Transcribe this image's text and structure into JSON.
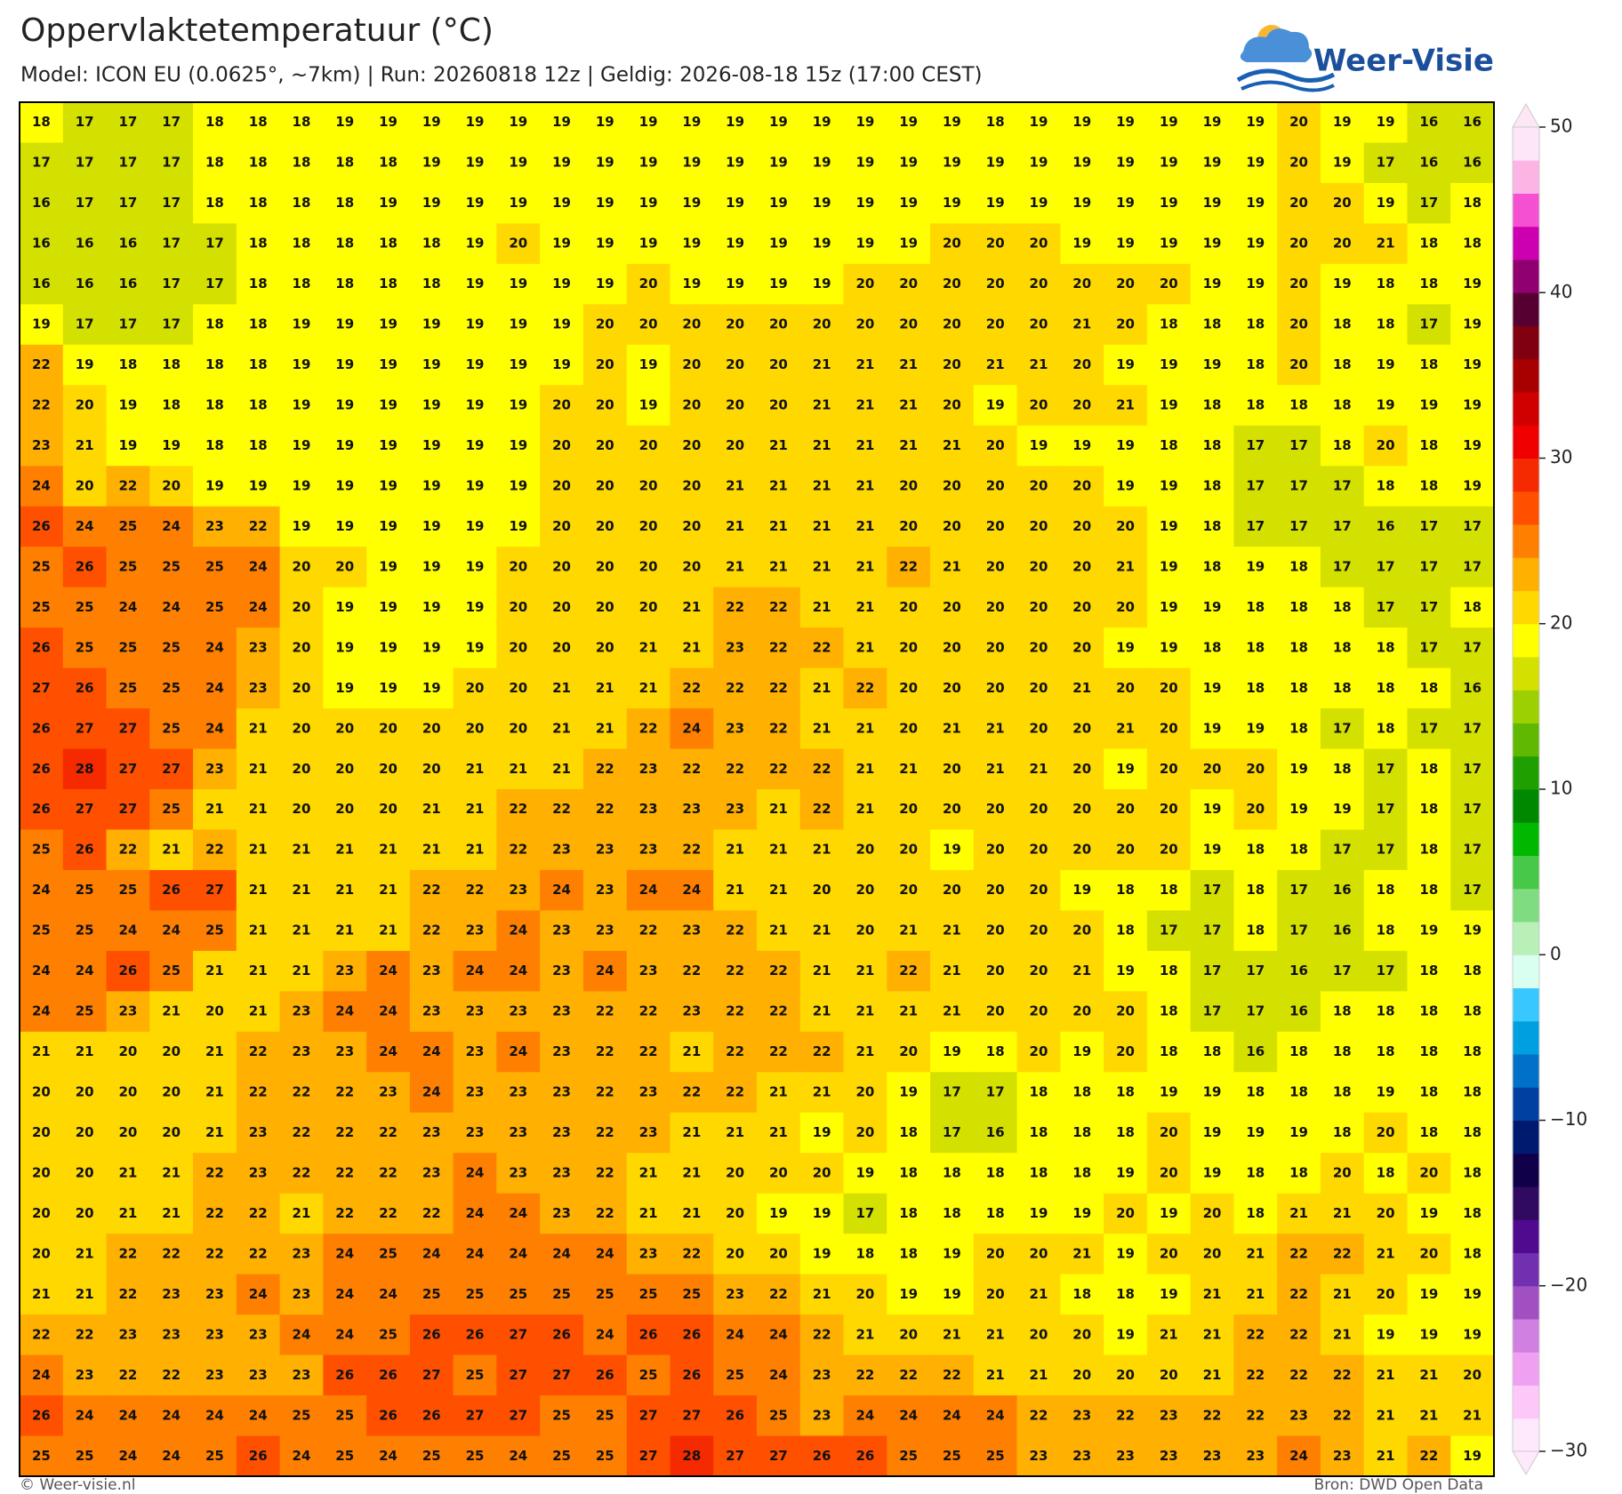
{
  "header": {
    "title": "Oppervlaktetemperatuur (°C)",
    "subtitle": "Model: ICON EU (0.0625°, ~7km)  |  Run: 20260818 12z  |  Geldig: 2026-08-18 15z (17:00 CEST)",
    "logo": "Weer-Visie"
  },
  "map": {
    "rows": [
      [
        18,
        17,
        17,
        17,
        18,
        18,
        18,
        19,
        19,
        19,
        19,
        19,
        19,
        19,
        19,
        19,
        19,
        19,
        19,
        19,
        19,
        19,
        18,
        19,
        19,
        19,
        19,
        19,
        19,
        20,
        19,
        19,
        16,
        16
      ],
      [
        17,
        17,
        17,
        17,
        18,
        18,
        18,
        18,
        18,
        19,
        19,
        19,
        19,
        19,
        19,
        19,
        19,
        19,
        19,
        19,
        19,
        19,
        19,
        19,
        19,
        19,
        19,
        19,
        19,
        20,
        19,
        17,
        16,
        16
      ],
      [
        16,
        17,
        17,
        17,
        18,
        18,
        18,
        18,
        19,
        19,
        19,
        19,
        19,
        19,
        19,
        19,
        19,
        19,
        19,
        19,
        19,
        19,
        19,
        19,
        19,
        19,
        19,
        19,
        19,
        20,
        20,
        19,
        17,
        18
      ],
      [
        16,
        16,
        16,
        17,
        17,
        18,
        18,
        18,
        18,
        18,
        19,
        20,
        19,
        19,
        19,
        19,
        19,
        19,
        19,
        19,
        19,
        20,
        20,
        20,
        19,
        19,
        19,
        19,
        19,
        20,
        20,
        21,
        18,
        18
      ],
      [
        16,
        16,
        16,
        17,
        17,
        18,
        18,
        18,
        18,
        18,
        19,
        19,
        19,
        19,
        20,
        19,
        19,
        19,
        19,
        20,
        20,
        20,
        20,
        20,
        20,
        20,
        20,
        19,
        19,
        20,
        19,
        18,
        18,
        19
      ],
      [
        19,
        17,
        17,
        17,
        18,
        18,
        19,
        19,
        19,
        19,
        19,
        19,
        19,
        20,
        20,
        20,
        20,
        20,
        20,
        20,
        20,
        20,
        20,
        20,
        21,
        20,
        18,
        18,
        18,
        20,
        18,
        18,
        17,
        19
      ],
      [
        22,
        19,
        18,
        18,
        18,
        18,
        19,
        19,
        19,
        19,
        19,
        19,
        19,
        20,
        19,
        20,
        20,
        20,
        21,
        21,
        21,
        20,
        21,
        21,
        20,
        19,
        19,
        19,
        18,
        20,
        18,
        19,
        18,
        19
      ],
      [
        22,
        20,
        19,
        18,
        18,
        18,
        19,
        19,
        19,
        19,
        19,
        19,
        20,
        20,
        19,
        20,
        20,
        20,
        21,
        21,
        21,
        20,
        19,
        20,
        20,
        21,
        19,
        18,
        18,
        18,
        18,
        19,
        19,
        19
      ],
      [
        23,
        21,
        19,
        19,
        18,
        18,
        19,
        19,
        19,
        19,
        19,
        19,
        20,
        20,
        20,
        20,
        20,
        21,
        21,
        21,
        21,
        21,
        20,
        19,
        19,
        19,
        18,
        18,
        17,
        17,
        18,
        20,
        18,
        19
      ],
      [
        24,
        20,
        22,
        20,
        19,
        19,
        19,
        19,
        19,
        19,
        19,
        19,
        20,
        20,
        20,
        20,
        21,
        21,
        21,
        21,
        20,
        20,
        20,
        20,
        20,
        19,
        19,
        18,
        17,
        17,
        17,
        18,
        18,
        19
      ],
      [
        26,
        24,
        25,
        24,
        23,
        22,
        19,
        19,
        19,
        19,
        19,
        19,
        20,
        20,
        20,
        20,
        21,
        21,
        21,
        21,
        20,
        20,
        20,
        20,
        20,
        20,
        19,
        18,
        17,
        17,
        17,
        16,
        17,
        17
      ],
      [
        25,
        26,
        25,
        25,
        25,
        24,
        20,
        20,
        19,
        19,
        19,
        20,
        20,
        20,
        20,
        20,
        21,
        21,
        21,
        21,
        22,
        21,
        20,
        20,
        20,
        21,
        19,
        18,
        19,
        18,
        17,
        17,
        17,
        17
      ],
      [
        25,
        25,
        24,
        24,
        25,
        24,
        20,
        19,
        19,
        19,
        19,
        20,
        20,
        20,
        20,
        21,
        22,
        22,
        21,
        21,
        20,
        20,
        20,
        20,
        20,
        20,
        19,
        19,
        18,
        18,
        18,
        17,
        17,
        18
      ],
      [
        26,
        25,
        25,
        25,
        24,
        23,
        20,
        19,
        19,
        19,
        19,
        20,
        20,
        20,
        21,
        21,
        23,
        22,
        22,
        21,
        20,
        20,
        20,
        20,
        20,
        19,
        19,
        18,
        18,
        18,
        18,
        18,
        17,
        17
      ],
      [
        27,
        26,
        25,
        25,
        24,
        23,
        20,
        19,
        19,
        19,
        20,
        20,
        21,
        21,
        21,
        22,
        22,
        22,
        21,
        22,
        20,
        20,
        20,
        20,
        21,
        20,
        20,
        19,
        18,
        18,
        18,
        18,
        18,
        16
      ],
      [
        26,
        27,
        27,
        25,
        24,
        21,
        20,
        20,
        20,
        20,
        20,
        20,
        21,
        21,
        22,
        24,
        23,
        22,
        21,
        21,
        20,
        21,
        21,
        20,
        20,
        21,
        20,
        19,
        19,
        18,
        17,
        18,
        17,
        17
      ],
      [
        26,
        28,
        27,
        27,
        23,
        21,
        20,
        20,
        20,
        20,
        21,
        21,
        21,
        22,
        23,
        22,
        22,
        22,
        22,
        21,
        21,
        20,
        21,
        21,
        20,
        19,
        20,
        20,
        20,
        19,
        18,
        17,
        18,
        17
      ],
      [
        26,
        27,
        27,
        25,
        21,
        21,
        20,
        20,
        20,
        21,
        21,
        22,
        22,
        22,
        23,
        23,
        23,
        21,
        22,
        21,
        20,
        20,
        20,
        20,
        20,
        20,
        20,
        19,
        20,
        19,
        19,
        17,
        18,
        17
      ],
      [
        25,
        26,
        22,
        21,
        22,
        21,
        21,
        21,
        21,
        21,
        21,
        22,
        23,
        23,
        23,
        22,
        21,
        21,
        21,
        20,
        20,
        19,
        20,
        20,
        20,
        20,
        20,
        19,
        18,
        18,
        17,
        17,
        18,
        17
      ],
      [
        24,
        25,
        25,
        26,
        27,
        21,
        21,
        21,
        21,
        22,
        22,
        23,
        24,
        23,
        24,
        24,
        21,
        21,
        20,
        20,
        20,
        20,
        20,
        20,
        19,
        18,
        18,
        17,
        18,
        17,
        16,
        18,
        18,
        17
      ],
      [
        25,
        25,
        24,
        24,
        25,
        21,
        21,
        21,
        21,
        22,
        23,
        24,
        23,
        23,
        22,
        23,
        22,
        21,
        21,
        20,
        21,
        21,
        20,
        20,
        20,
        18,
        17,
        17,
        18,
        17,
        16,
        18,
        19,
        19
      ],
      [
        24,
        24,
        26,
        25,
        21,
        21,
        21,
        23,
        24,
        23,
        24,
        24,
        23,
        24,
        23,
        22,
        22,
        22,
        21,
        21,
        22,
        21,
        20,
        20,
        21,
        19,
        18,
        17,
        17,
        16,
        17,
        17,
        18,
        18
      ],
      [
        24,
        25,
        23,
        21,
        20,
        21,
        23,
        24,
        24,
        23,
        23,
        23,
        23,
        22,
        22,
        23,
        22,
        22,
        21,
        21,
        21,
        21,
        20,
        20,
        20,
        20,
        18,
        17,
        17,
        16,
        18,
        18,
        18,
        18
      ],
      [
        21,
        21,
        20,
        20,
        21,
        22,
        23,
        23,
        24,
        24,
        23,
        24,
        23,
        22,
        22,
        21,
        22,
        22,
        22,
        21,
        20,
        19,
        18,
        20,
        19,
        20,
        18,
        18,
        16,
        18,
        18,
        18,
        18,
        18
      ],
      [
        20,
        20,
        20,
        20,
        21,
        22,
        22,
        22,
        23,
        24,
        23,
        23,
        23,
        22,
        23,
        22,
        22,
        21,
        21,
        20,
        19,
        17,
        17,
        18,
        18,
        18,
        19,
        19,
        18,
        18,
        18,
        19,
        18,
        18
      ],
      [
        20,
        20,
        20,
        20,
        21,
        23,
        22,
        22,
        22,
        23,
        23,
        23,
        23,
        22,
        23,
        21,
        21,
        21,
        19,
        20,
        18,
        17,
        16,
        18,
        18,
        18,
        20,
        19,
        19,
        19,
        18,
        20,
        18,
        18
      ],
      [
        20,
        20,
        21,
        21,
        22,
        23,
        22,
        22,
        22,
        23,
        24,
        23,
        23,
        22,
        21,
        21,
        20,
        20,
        20,
        19,
        18,
        18,
        18,
        18,
        18,
        19,
        20,
        19,
        18,
        18,
        20,
        18,
        20,
        18
      ],
      [
        20,
        20,
        21,
        21,
        22,
        22,
        21,
        22,
        22,
        22,
        24,
        24,
        23,
        22,
        21,
        21,
        20,
        19,
        19,
        17,
        18,
        18,
        18,
        19,
        19,
        20,
        19,
        20,
        18,
        21,
        21,
        20,
        19,
        18
      ],
      [
        20,
        21,
        22,
        22,
        22,
        22,
        23,
        24,
        25,
        24,
        24,
        24,
        24,
        24,
        23,
        22,
        20,
        20,
        19,
        18,
        18,
        19,
        20,
        20,
        21,
        19,
        20,
        20,
        21,
        22,
        22,
        21,
        20,
        18
      ],
      [
        21,
        21,
        22,
        23,
        23,
        24,
        23,
        24,
        24,
        25,
        25,
        25,
        25,
        25,
        25,
        25,
        23,
        22,
        21,
        20,
        19,
        19,
        20,
        21,
        18,
        18,
        19,
        21,
        21,
        22,
        21,
        20,
        19,
        19
      ],
      [
        22,
        22,
        23,
        23,
        23,
        23,
        24,
        24,
        25,
        26,
        26,
        27,
        26,
        24,
        26,
        26,
        24,
        24,
        22,
        21,
        20,
        21,
        21,
        20,
        20,
        19,
        21,
        21,
        22,
        22,
        21,
        19,
        19,
        19
      ],
      [
        24,
        23,
        22,
        22,
        23,
        23,
        23,
        26,
        26,
        27,
        25,
        27,
        27,
        26,
        25,
        26,
        25,
        24,
        23,
        22,
        22,
        22,
        21,
        21,
        20,
        20,
        20,
        21,
        22,
        22,
        22,
        21,
        21,
        20
      ],
      [
        26,
        24,
        24,
        24,
        24,
        24,
        25,
        25,
        26,
        26,
        27,
        27,
        25,
        25,
        27,
        27,
        26,
        25,
        23,
        24,
        24,
        24,
        24,
        22,
        23,
        22,
        23,
        22,
        22,
        23,
        22,
        21,
        21,
        21
      ],
      [
        25,
        25,
        24,
        24,
        25,
        26,
        24,
        25,
        24,
        25,
        25,
        24,
        25,
        25,
        27,
        28,
        27,
        27,
        26,
        26,
        25,
        25,
        25,
        23,
        23,
        23,
        23,
        23,
        23,
        24,
        23,
        21,
        22,
        19
      ]
    ]
  },
  "colorbar": {
    "lim": [
      -30,
      50
    ],
    "ticks": [
      50,
      40,
      30,
      20,
      10,
      0,
      {
        "value": -10,
        "label": "−10"
      },
      {
        "value": -20,
        "label": "−20"
      },
      {
        "value": -30,
        "label": "−30"
      }
    ],
    "colors": [
      "#fde8fc",
      "#fcc8f8",
      "#f0a0f0",
      "#d080e0",
      "#a050c0",
      "#7030b0",
      "#500a90",
      "#300a60",
      "#10004a",
      "#001a70",
      "#0040a0",
      "#0070c8",
      "#00a0e0",
      "#38c8ff",
      "#d8fff0",
      "#b8f0b8",
      "#80dc80",
      "#48c848",
      "#00b800",
      "#008800",
      "#20a000",
      "#60b800",
      "#9cd000",
      "#d4e000",
      "#ffff00",
      "#ffd800",
      "#ffb000",
      "#ff8000",
      "#ff5000",
      "#f52a00",
      "#f00000",
      "#d00000",
      "#a80000",
      "#800010",
      "#550030",
      "#900070",
      "#cc00b0",
      "#f550d2",
      "#fbb4e4",
      "#fde6f6"
    ]
  },
  "footer": {
    "left": "© Weer-visie.nl",
    "right": "Bron: DWD Open Data"
  }
}
